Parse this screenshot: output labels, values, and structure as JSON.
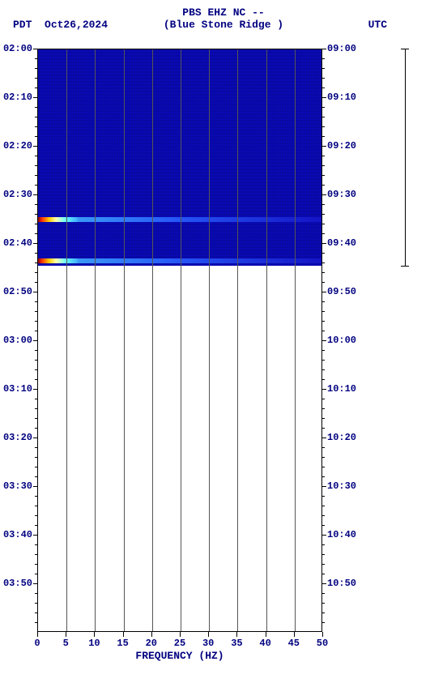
{
  "header": {
    "title_line1": "PBS EHZ NC --",
    "tz_left": "PDT",
    "date": "Oct26,2024",
    "station": "(Blue Stone Ridge )",
    "tz_right": "UTC"
  },
  "chart": {
    "type": "spectrogram",
    "xlabel": "FREQUENCY (HZ)",
    "xlim": [
      0,
      50
    ],
    "xticks": [
      0,
      5,
      10,
      15,
      20,
      25,
      30,
      35,
      40,
      45,
      50
    ],
    "left_time_ticks": [
      "02:00",
      "02:10",
      "02:20",
      "02:30",
      "02:40",
      "02:50",
      "03:00",
      "03:10",
      "03:20",
      "03:30",
      "03:40",
      "03:50"
    ],
    "right_time_ticks": [
      "09:00",
      "09:10",
      "09:20",
      "09:30",
      "09:40",
      "09:50",
      "10:00",
      "10:10",
      "10:20",
      "10:30",
      "10:40",
      "10:50"
    ],
    "y_minutes_total": 120,
    "y_minor_step_min": 2,
    "data_filled_until_min": 44.5,
    "events_at_min": [
      35.0,
      43.5
    ],
    "colors": {
      "background": "#ffffff",
      "spectro_fill": "#0909a0",
      "axis_text": "#000080",
      "grid": "#555555",
      "border": "#000000",
      "hot_gradient": [
        "#8b0000",
        "#ff3300",
        "#ffcc00",
        "#ffffaa",
        "#66ffff",
        "#3fa9ff"
      ],
      "tail_gradient": [
        "#3fa9ff",
        "#2a60ff",
        "#1515c8"
      ]
    },
    "fonts": {
      "family": "Courier New",
      "header_pt": 13,
      "tick_pt": 12,
      "label_pt": 13,
      "weight": "bold"
    },
    "far_axis": {
      "height_fraction_of_plot": 0.372,
      "tick_fracs": [
        0,
        1
      ]
    }
  }
}
